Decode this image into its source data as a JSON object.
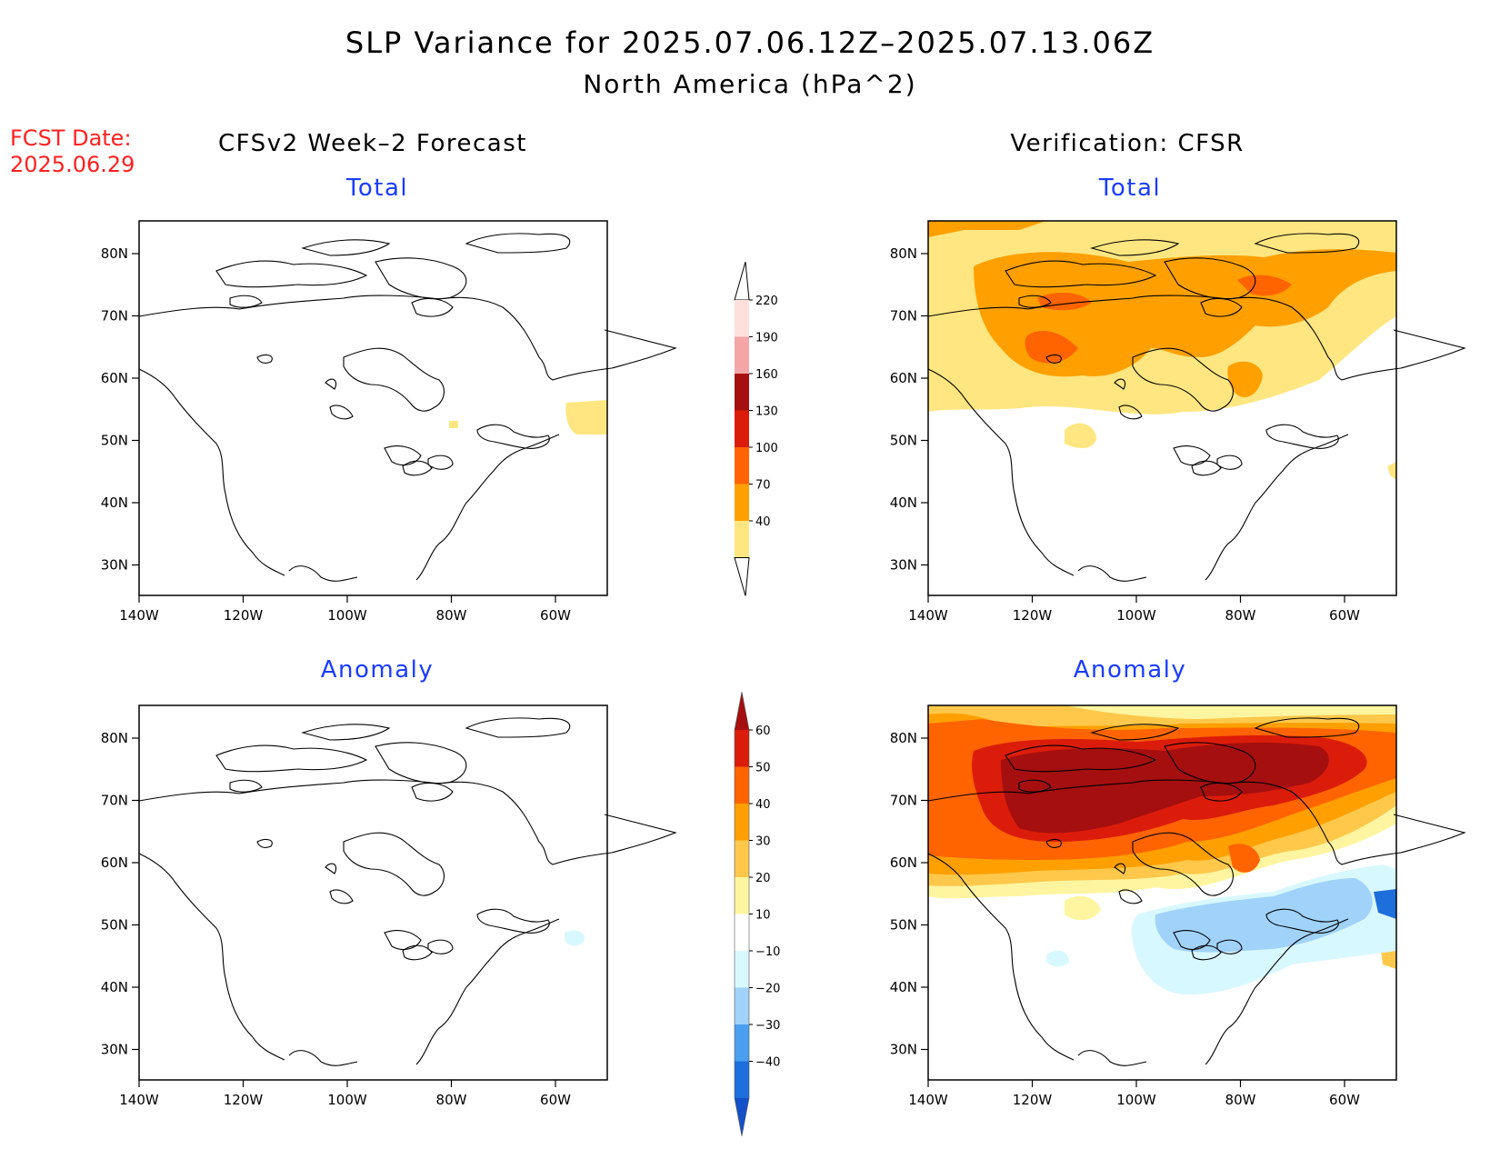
{
  "header": {
    "title": "SLP Variance for 2025.07.06.12Z–2025.07.13.06Z",
    "subtitle": "North America (hPa^2)",
    "fcst_label": "FCST Date:",
    "fcst_date": "2025.06.29"
  },
  "columns": {
    "left": "CFSv2 Week–2 Forecast",
    "right": "Verification: CFSR"
  },
  "panels": [
    {
      "id": "fcst-total",
      "subtitle": "Total"
    },
    {
      "id": "verif-total",
      "subtitle": "Total"
    },
    {
      "id": "fcst-anomaly",
      "subtitle": "Anomaly"
    },
    {
      "id": "verif-anomaly",
      "subtitle": "Anomaly"
    }
  ],
  "axes": {
    "lon_labels": [
      "140W",
      "120W",
      "100W",
      "80W",
      "60W"
    ],
    "lat_labels": [
      "80N",
      "70N",
      "60N",
      "50N",
      "40N",
      "30N"
    ]
  },
  "colorbars": {
    "total": {
      "levels": [
        "220",
        "190",
        "160",
        "130",
        "100",
        "70",
        "40"
      ],
      "colors": [
        "#fde0dc",
        "#f4a6a6",
        "#a50f0f",
        "#dc1c0a",
        "#ff6400",
        "#ffa000",
        "#ffe680"
      ]
    },
    "anomaly": {
      "levels": [
        "60",
        "50",
        "40",
        "30",
        "20",
        "10",
        "−10",
        "−20",
        "−30",
        "−40"
      ],
      "colors": [
        "#a50f0f",
        "#dc1c0a",
        "#ff6400",
        "#ffa000",
        "#ffc84b",
        "#fff5a0",
        "#ffffff",
        "#d8f8ff",
        "#a0d2fa",
        "#4b9ff0",
        "#1e6edc",
        "#1450c8"
      ]
    }
  },
  "colors": {
    "title_red": "#ff2020",
    "subtitle_blue": "#1a3cff"
  }
}
